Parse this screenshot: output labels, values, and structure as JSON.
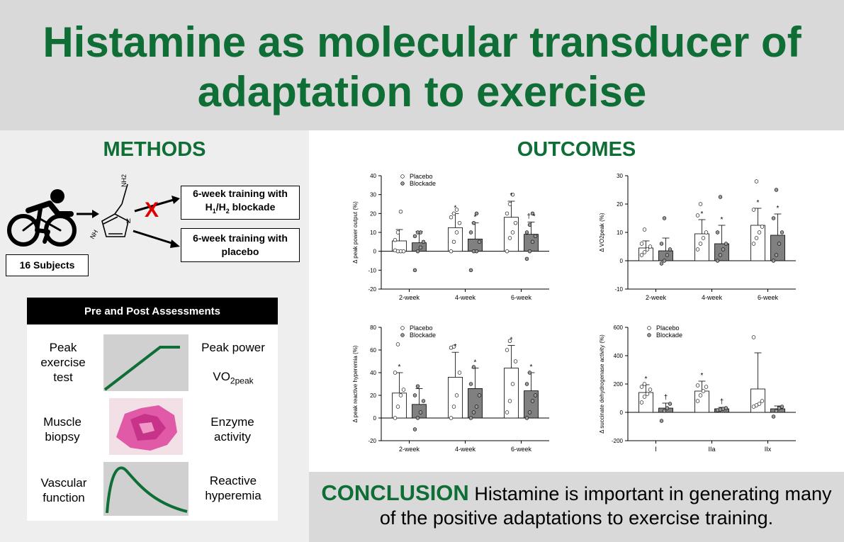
{
  "title": {
    "line1": "Histamine as molecular transducer of",
    "line2": "adaptation to exercise"
  },
  "methods": {
    "heading": "METHODS",
    "subjects_label": "16 Subjects",
    "box_blockade": [
      "6-week training with",
      "H1/H2 blockade"
    ],
    "box_placebo": [
      "6-week training with",
      "placebo"
    ],
    "blocked_mark": "X",
    "molecule_labels": {
      "amine": "NH2",
      "ring_n": "N",
      "ring_nh": "NH"
    }
  },
  "assessments": {
    "header": "Pre and Post Assessments",
    "rows": [
      {
        "left": [
          "Peak",
          "exercise",
          "test"
        ],
        "right_top": "Peak power",
        "right_bottom_main": "VO",
        "right_bottom_sub": "2peak"
      },
      {
        "left": [
          "Muscle",
          "biopsy"
        ],
        "right": [
          "Enzyme",
          "activity"
        ]
      },
      {
        "left": [
          "Vascular",
          "function"
        ],
        "right": [
          "Reactive",
          "hyperemia"
        ]
      }
    ]
  },
  "outcomes": {
    "heading": "OUTCOMES"
  },
  "conclusion": {
    "word": "CONCLUSION",
    "text_line1": "Histamine is important in generating many",
    "text_line2": "of the positive adaptations to exercise training."
  },
  "colors": {
    "green": "#0e6e36",
    "placebo": "#ffffff",
    "blockade": "#808080",
    "banner": "#d9d9d9"
  },
  "chart_data": [
    {
      "type": "bar",
      "ylabel": "Δ peak power output (%)",
      "categories": [
        "2-week",
        "4-week",
        "6-week"
      ],
      "ylim": [
        -20,
        40
      ],
      "yticks": [
        -20,
        -10,
        0,
        10,
        20,
        30,
        40
      ],
      "legend": [
        "Placebo",
        "Blockade"
      ],
      "series": [
        {
          "name": "Placebo",
          "values": [
            5.5,
            12.5,
            18
          ],
          "sd": [
            6,
            7.5,
            8.5
          ],
          "points": [
            [
              0.5,
              0,
              0,
              0,
              6,
              10,
              21
            ],
            [
              0,
              5,
              10,
              15,
              18,
              20,
              22
            ],
            [
              0,
              7,
              10,
              15,
              20,
              25,
              30
            ]
          ],
          "marks": [
            "",
            "*",
            "*"
          ]
        },
        {
          "name": "Blockade",
          "values": [
            4.5,
            6.5,
            9
          ],
          "sd": [
            6,
            8.5,
            6.5
          ],
          "points": [
            [
              -10,
              0,
              2,
              5,
              8,
              10,
              10
            ],
            [
              -10,
              0,
              0,
              5,
              10,
              15,
              20
            ],
            [
              -4,
              0,
              5,
              8,
              10,
              14,
              20
            ]
          ],
          "marks": [
            "",
            "*",
            "† *"
          ]
        }
      ]
    },
    {
      "type": "bar",
      "ylabel": "Δ VO2peak (%)",
      "categories": [
        "2-week",
        "4-week",
        "6-week"
      ],
      "ylim": [
        -10,
        30
      ],
      "yticks": [
        -10,
        0,
        10,
        20,
        30
      ],
      "series": [
        {
          "name": "Placebo",
          "values": [
            4.5,
            9.5,
            12.5
          ],
          "sd": [
            2.5,
            5,
            6
          ],
          "points": [
            [
              2,
              3,
              4,
              5,
              6,
              11
            ],
            [
              4,
              6,
              8,
              10,
              16,
              20
            ],
            [
              6,
              8,
              10,
              12,
              18,
              28
            ]
          ],
          "marks": [
            "",
            "*",
            "*"
          ]
        },
        {
          "name": "Blockade",
          "values": [
            3.5,
            6,
            9
          ],
          "sd": [
            4.5,
            6.5,
            7.5
          ],
          "points": [
            [
              -1,
              0,
              2,
              4,
              6,
              15
            ],
            [
              0,
              2,
              4,
              6,
              10,
              22.5
            ],
            [
              0,
              2,
              6,
              10,
              15,
              25
            ]
          ],
          "marks": [
            "",
            "*",
            "*"
          ]
        }
      ]
    },
    {
      "type": "bar",
      "ylabel": "Δ peak reactive hyperemia (%)",
      "categories": [
        "2-week",
        "4-week",
        "6-week"
      ],
      "ylim": [
        -20,
        80
      ],
      "yticks": [
        -20,
        0,
        20,
        40,
        60,
        80
      ],
      "legend": [
        "Placebo",
        "Blockade"
      ],
      "series": [
        {
          "name": "Placebo",
          "values": [
            22,
            36,
            44
          ],
          "sd": [
            18,
            22,
            20
          ],
          "points": [
            [
              0,
              10,
              20,
              25,
              40,
              65
            ],
            [
              0,
              10,
              20,
              40,
              62,
              63
            ],
            [
              5,
              15,
              30,
              50,
              60,
              68
            ]
          ],
          "marks": [
            "*",
            "*",
            "*"
          ]
        },
        {
          "name": "Blockade",
          "values": [
            12,
            26,
            24
          ],
          "sd": [
            14,
            18,
            16
          ],
          "points": [
            [
              -10,
              0,
              5,
              15,
              20,
              28
            ],
            [
              0,
              5,
              10,
              20,
              30,
              45
            ],
            [
              0,
              5,
              15,
              20,
              30,
              40
            ]
          ],
          "marks": [
            "",
            "*",
            "*"
          ]
        }
      ]
    },
    {
      "type": "bar",
      "ylabel": "Δ succinate dehydrogenase activity (%)",
      "categories": [
        "I",
        "IIa",
        "IIx"
      ],
      "ylim": [
        -200,
        600
      ],
      "yticks": [
        -200,
        0,
        200,
        400,
        600
      ],
      "legend": [
        "Placebo",
        "Blockade"
      ],
      "series": [
        {
          "name": "Placebo",
          "values": [
            140,
            150,
            165
          ],
          "sd": [
            55,
            70,
            255
          ],
          "points": [
            [
              70,
              110,
              130,
              160,
              180,
              200
            ],
            [
              80,
              120,
              150,
              180,
              190
            ],
            [
              40,
              50,
              60,
              80,
              530
            ]
          ],
          "marks": [
            "*",
            "*",
            ""
          ]
        },
        {
          "name": "Blockade",
          "values": [
            30,
            25,
            25
          ],
          "sd": [
            35,
            10,
            20
          ],
          "points": [
            [
              -60,
              10,
              30,
              60
            ],
            [
              15,
              20,
              25,
              30
            ],
            [
              -30,
              10,
              30,
              40
            ]
          ],
          "marks": [
            "†",
            "†",
            ""
          ]
        }
      ]
    }
  ]
}
